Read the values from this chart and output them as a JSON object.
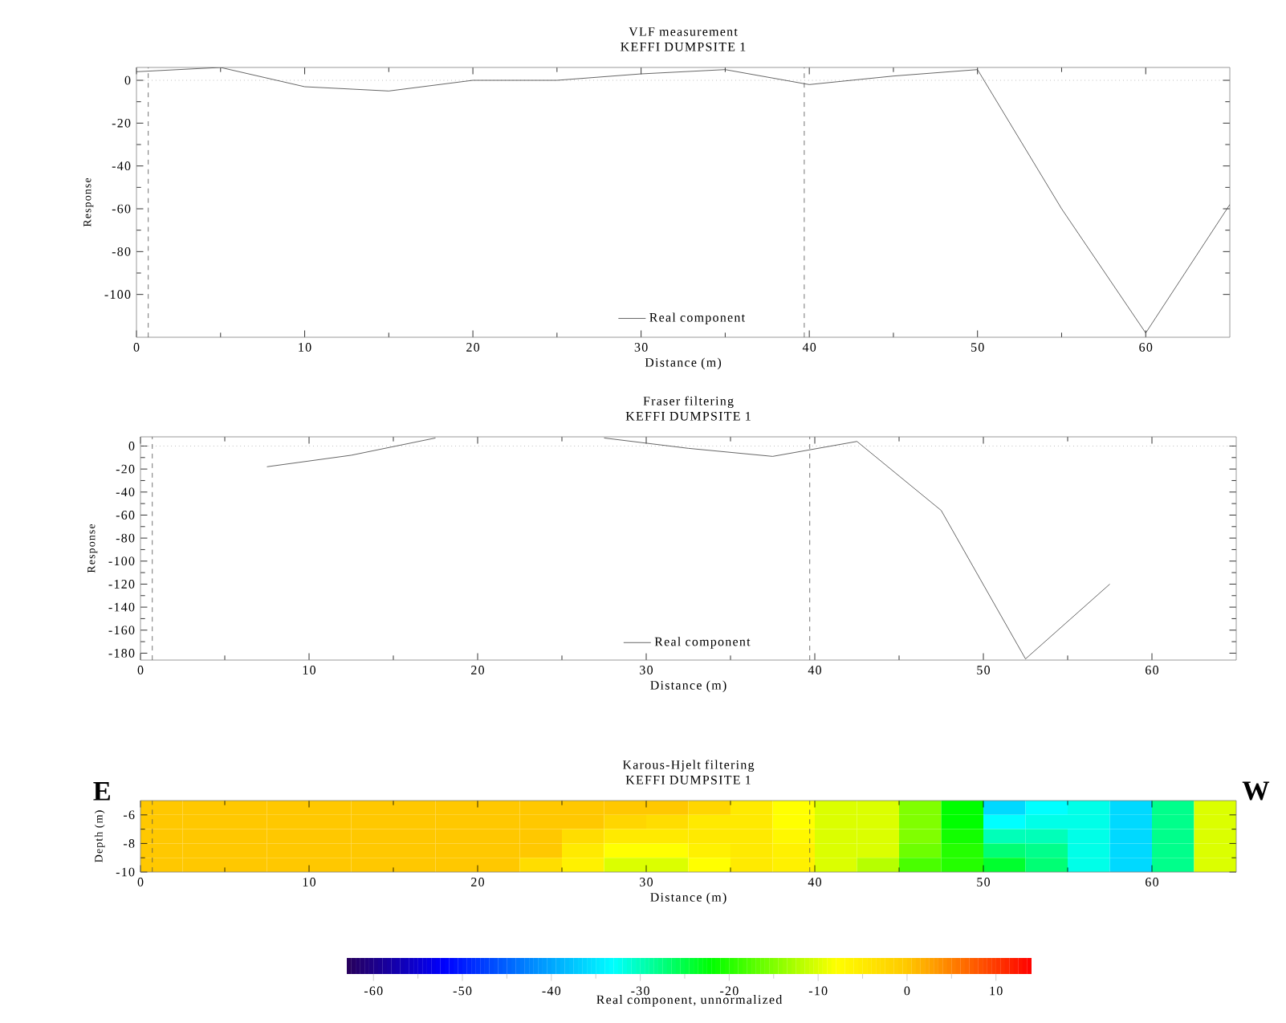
{
  "chart_data": [
    {
      "type": "line",
      "title": "VLF measurement",
      "subtitle": "KEFFI DUMPSITE 1",
      "xlabel": "Distance (m)",
      "ylabel": "Response",
      "x": [
        0,
        5,
        10,
        15,
        20,
        25,
        30,
        35,
        40,
        45,
        50,
        55,
        60,
        65
      ],
      "series": [
        {
          "name": "Real component",
          "color": "#404040",
          "values": [
            4,
            6,
            -3,
            -5,
            0,
            0,
            3,
            5,
            -2,
            2,
            5,
            -60,
            -118,
            -58
          ]
        }
      ],
      "xlim": [
        0,
        65
      ],
      "ylim": [
        -120,
        6
      ],
      "xticks": [
        0,
        10,
        20,
        30,
        40,
        50,
        60
      ],
      "yticks": [
        -100,
        -80,
        -60,
        -40,
        -20,
        0
      ],
      "ref_lines": [
        {
          "axis": "y",
          "value": 0,
          "line_style": "dotted",
          "color": "#9a9a9a"
        },
        {
          "axis": "x",
          "value": 0.7,
          "line_style": "dashed",
          "color": "#505050"
        },
        {
          "axis": "x",
          "value": 39.7,
          "line_style": "dashed",
          "color": "#505050"
        }
      ],
      "legend": "bottom"
    },
    {
      "type": "line",
      "title": "Fraser filtering",
      "subtitle": "KEFFI DUMPSITE 1",
      "xlabel": "Distance (m)",
      "ylabel": "Response",
      "x": [
        7.5,
        12.5,
        17.5,
        22.5,
        27.5,
        32.5,
        37.5,
        42.5,
        47.5,
        52.5,
        57.5
      ],
      "series": [
        {
          "name": "Real component",
          "color": "#404040",
          "values": [
            -18,
            -8,
            7,
            null,
            7,
            -2,
            -9,
            4,
            -56,
            -185,
            -120
          ]
        }
      ],
      "xlim": [
        0,
        65
      ],
      "ylim": [
        -186,
        8
      ],
      "xticks": [
        0,
        10,
        20,
        30,
        40,
        50,
        60
      ],
      "yticks": [
        -180,
        -160,
        -140,
        -120,
        -100,
        -80,
        -60,
        -40,
        -20,
        0
      ],
      "ref_lines": [
        {
          "axis": "y",
          "value": 0,
          "line_style": "dotted",
          "color": "#9a9a9a"
        },
        {
          "axis": "x",
          "value": 0.7,
          "line_style": "dashed",
          "color": "#505050"
        },
        {
          "axis": "x",
          "value": 39.7,
          "line_style": "dashed",
          "color": "#505050"
        }
      ],
      "legend": "bottom"
    },
    {
      "type": "heatmap",
      "title": "Karous-Hjelt filtering",
      "subtitle": "KEFFI DUMPSITE 1",
      "xlabel": "Distance (m)",
      "ylabel": "Depth (m)",
      "clabel": "Real component, unnormalized",
      "annotations": [
        "E",
        "W"
      ],
      "x": [
        1.25,
        3.75,
        6.25,
        8.75,
        11.25,
        13.75,
        16.25,
        18.75,
        21.25,
        23.75,
        26.25,
        28.75,
        31.25,
        33.75,
        36.25,
        38.75,
        41.25,
        43.75,
        46.25,
        48.75,
        51.25,
        53.75,
        56.25,
        58.75,
        61.25,
        63.75
      ],
      "y": [
        -5.5,
        -6.5,
        -7.5,
        -8.5,
        -9.5
      ],
      "cells": [
        [
          0,
          0,
          0,
          0,
          0,
          0,
          0,
          0,
          0,
          0,
          0,
          0,
          0,
          -2,
          -5,
          -8,
          -10,
          -10,
          -15,
          -22,
          -36,
          -33,
          -32,
          -36,
          -28,
          -10
        ],
        [
          0,
          0,
          0,
          0,
          0,
          0,
          0,
          0,
          0,
          0,
          0,
          -2,
          -3,
          -5,
          -5,
          -8,
          -10,
          -10,
          -15,
          -22,
          -33,
          -32,
          -32,
          -36,
          -28,
          -10
        ],
        [
          0,
          0,
          0,
          0,
          0,
          0,
          0,
          0,
          0,
          0,
          -3,
          -5,
          -5,
          -5,
          -5,
          -7,
          -10,
          -10,
          -15,
          -21,
          -30,
          -30,
          -32,
          -36,
          -28,
          -10
        ],
        [
          0,
          0,
          0,
          0,
          0,
          0,
          0,
          0,
          0,
          0,
          -5,
          -8,
          -8,
          -6,
          -5,
          -6,
          -10,
          -10,
          -16,
          -20,
          -27,
          -28,
          -32,
          -36,
          -28,
          -10
        ],
        [
          0,
          0,
          0,
          0,
          0,
          0,
          0,
          0,
          0,
          -3,
          -6,
          -10,
          -10,
          -8,
          -5,
          -6,
          -10,
          -12,
          -18,
          -20,
          -24,
          -27,
          -32,
          -36,
          -28,
          -10
        ]
      ],
      "xlim": [
        0,
        65
      ],
      "ylim": [
        -10,
        -5
      ],
      "xticks": [
        0,
        10,
        20,
        30,
        40,
        50,
        60
      ],
      "yticks": [
        -10,
        -8,
        -6
      ],
      "clim": [
        -63,
        14
      ],
      "cticks": [
        -60,
        -50,
        -40,
        -30,
        -20,
        -10,
        0,
        10
      ],
      "ref_lines": [
        {
          "axis": "x",
          "value": 0.7,
          "line_style": "dashed",
          "color": "#505050"
        },
        {
          "axis": "x",
          "value": 39.7,
          "line_style": "dashed",
          "color": "#505050"
        }
      ]
    }
  ]
}
